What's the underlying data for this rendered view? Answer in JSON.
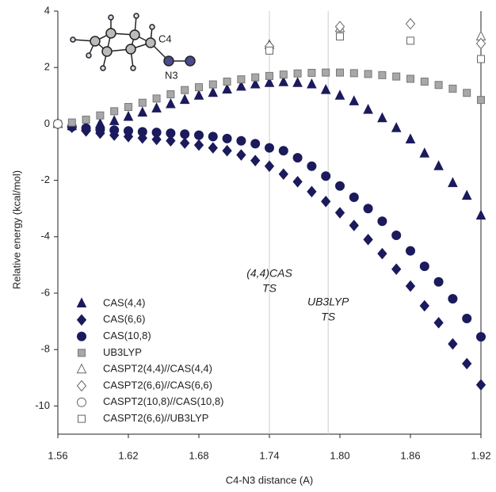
{
  "chart_data": {
    "type": "scatter",
    "xlabel": "C4-N3 distance (A)",
    "ylabel": "Relative energy (kcal/mol)",
    "xlim": [
      1.56,
      1.92
    ],
    "ylim": [
      -11,
      4
    ],
    "xticks": [
      1.56,
      1.62,
      1.68,
      1.74,
      {
        "value": 1.8,
        "label": "1.80"
      },
      1.86,
      1.92
    ],
    "yticks": [
      4,
      2,
      0,
      -2,
      -4,
      -6,
      -8,
      -10
    ],
    "legend": "lower left",
    "inset_labels": [
      "C4",
      "N3"
    ],
    "annotations": [
      {
        "x": 1.74,
        "lines": [
          "(4,4)CAS",
          "TS"
        ]
      },
      {
        "x": 1.79,
        "lines": [
          "UB3LYP",
          "TS"
        ]
      }
    ],
    "x": [
      1.56,
      1.572,
      1.584,
      1.596,
      1.608,
      1.62,
      1.632,
      1.644,
      1.656,
      1.668,
      1.68,
      1.692,
      1.704,
      1.716,
      1.728,
      1.74,
      1.752,
      1.764,
      1.776,
      1.788,
      1.8,
      1.812,
      1.824,
      1.836,
      1.848,
      1.86,
      1.872,
      1.884,
      1.896,
      1.908,
      1.92
    ],
    "series": [
      {
        "name": "CAS(4,4)",
        "marker": "triangle",
        "filled": true,
        "color": "#1b1a5c",
        "values": [
          0,
          -0.08,
          -0.1,
          0,
          0.1,
          0.25,
          0.4,
          0.55,
          0.7,
          0.85,
          1.0,
          1.1,
          1.22,
          1.32,
          1.4,
          1.45,
          1.48,
          1.45,
          1.4,
          1.2,
          1.0,
          0.8,
          0.5,
          0.2,
          -0.15,
          -0.55,
          -1.05,
          -1.5,
          -2.1,
          -2.55,
          -3.25
        ]
      },
      {
        "name": "CAS(6,6)",
        "marker": "diamond",
        "filled": true,
        "color": "#1b1a5c",
        "values": [
          0,
          -0.12,
          -0.25,
          -0.33,
          -0.4,
          -0.45,
          -0.5,
          -0.55,
          -0.6,
          -0.68,
          -0.75,
          -0.85,
          -0.95,
          -1.1,
          -1.3,
          -1.5,
          -1.78,
          -2.05,
          -2.4,
          -2.75,
          -3.15,
          -3.6,
          -4.1,
          -4.6,
          -5.15,
          -5.75,
          -6.45,
          -7.05,
          -7.8,
          -8.5,
          -9.25
        ]
      },
      {
        "name": "CAS(10,8)",
        "marker": "circle",
        "filled": true,
        "color": "#1b1a5c",
        "values": [
          0,
          -0.1,
          -0.15,
          -0.2,
          -0.22,
          -0.25,
          -0.28,
          -0.3,
          -0.33,
          -0.36,
          -0.4,
          -0.45,
          -0.52,
          -0.6,
          -0.7,
          -0.85,
          -0.95,
          -1.2,
          -1.5,
          -1.85,
          -2.2,
          -2.6,
          -3.0,
          -3.45,
          -3.95,
          -4.5,
          -5.05,
          -5.6,
          -6.2,
          -6.9,
          -7.55
        ]
      },
      {
        "name": "UB3LYP",
        "marker": "square",
        "filled": true,
        "color": "#a8a8a8",
        "values": [
          0,
          0.05,
          0.15,
          0.3,
          0.45,
          0.6,
          0.75,
          0.9,
          1.05,
          1.2,
          1.3,
          1.4,
          1.5,
          1.58,
          1.65,
          1.7,
          1.75,
          1.79,
          1.81,
          1.82,
          1.82,
          1.8,
          1.77,
          1.73,
          1.68,
          1.6,
          1.5,
          1.38,
          1.25,
          1.1,
          0.85
        ]
      },
      {
        "name": "CASPT2(4,4)//CAS(4,4)",
        "marker": "triangle",
        "filled": false,
        "color": "#666666",
        "x": [
          1.74,
          1.8,
          1.92
        ],
        "values": [
          2.8,
          3.4,
          3.1
        ]
      },
      {
        "name": "CASPT2(6,6)//CAS(6,6)",
        "marker": "diamond",
        "filled": false,
        "color": "#666666",
        "x": [
          1.74,
          1.8,
          1.86,
          1.92
        ],
        "values": [
          2.75,
          3.45,
          3.55,
          2.85
        ]
      },
      {
        "name": "CASPT2(10,8)//CAS(10,8)",
        "marker": "circle",
        "filled": false,
        "color": "#666666",
        "x": [
          1.56
        ],
        "values": [
          0
        ]
      },
      {
        "name": "CASPT2(6,6)//UB3LYP",
        "marker": "square",
        "filled": false,
        "color": "#666666",
        "x": [
          1.74,
          1.8,
          1.86,
          1.92
        ],
        "values": [
          2.6,
          3.1,
          2.95,
          2.3
        ]
      }
    ]
  }
}
